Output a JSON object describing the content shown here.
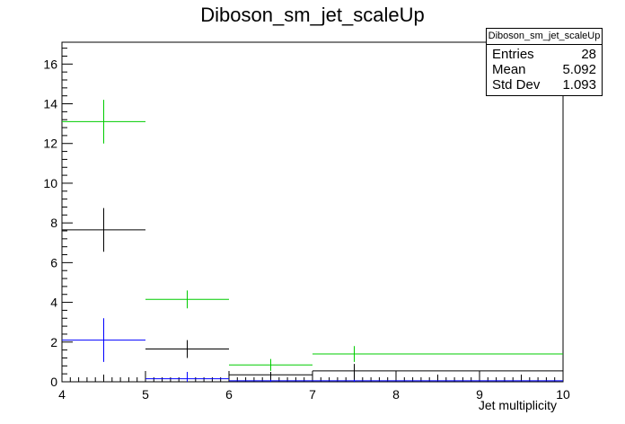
{
  "chart_data": {
    "type": "histogram",
    "title": "Diboson_sm_jet_scaleUp",
    "xlabel": "Jet multiplicity",
    "ylabel": "",
    "xlim": [
      4,
      10
    ],
    "ylim": [
      0,
      17.1
    ],
    "xticks": [
      "4",
      "5",
      "6",
      "7",
      "8",
      "9",
      "10"
    ],
    "yticks": [
      "0",
      "2",
      "4",
      "6",
      "8",
      "10",
      "12",
      "14",
      "16"
    ],
    "series": [
      {
        "color": "#00cc00",
        "bins": [
          {
            "x0": 4,
            "x1": 5,
            "y": 13.1,
            "err": 1.1
          },
          {
            "x0": 5,
            "x1": 6,
            "y": 4.15,
            "err": 0.45
          },
          {
            "x0": 6,
            "x1": 7,
            "y": 0.85,
            "err": 0.3
          },
          {
            "x0": 7,
            "x1": 10,
            "y": 1.4,
            "err": 0.4
          }
        ]
      },
      {
        "color": "#000000",
        "bins": [
          {
            "x0": 4,
            "x1": 5,
            "y": 7.65,
            "err": 1.1
          },
          {
            "x0": 5,
            "x1": 6,
            "y": 1.65,
            "err": 0.45
          },
          {
            "x0": 6,
            "x1": 7,
            "y": 0.35,
            "err": 0.15
          },
          {
            "x0": 7,
            "x1": 10,
            "y": 0.55,
            "err": 0.35
          }
        ]
      },
      {
        "color": "#0000ff",
        "bins": [
          {
            "x0": 4,
            "x1": 5,
            "y": 2.1,
            "err": 1.1
          },
          {
            "x0": 5,
            "x1": 6,
            "y": 0.15,
            "err": 0.35
          },
          {
            "x0": 6,
            "x1": 7,
            "y": 0.05,
            "err": 0.05
          },
          {
            "x0": 7,
            "x1": 10,
            "y": 0.05,
            "err": 0.05
          }
        ]
      }
    ]
  },
  "stats": {
    "name": "Diboson_sm_jet_scaleUp",
    "entries_label": "Entries",
    "entries_value": "28",
    "mean_label": "Mean",
    "mean_value": "5.092",
    "std_label": "Std Dev",
    "std_value": "1.093"
  }
}
